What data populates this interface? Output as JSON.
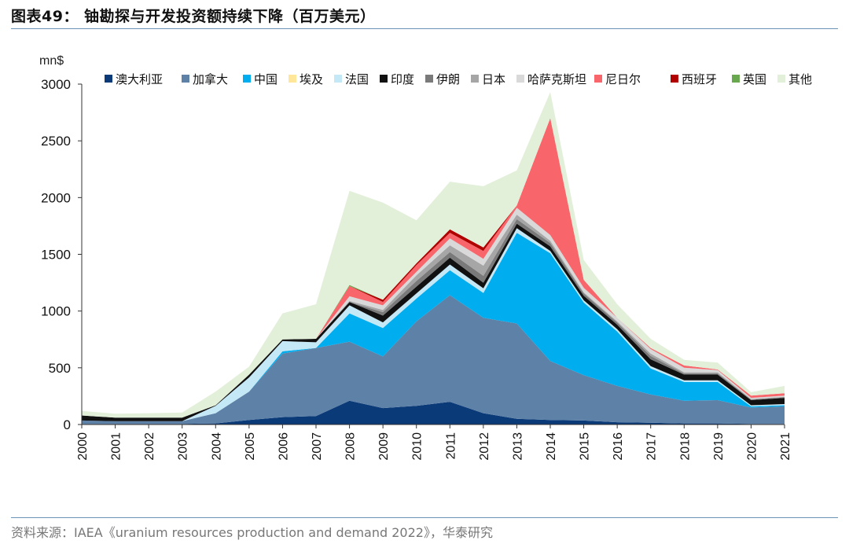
{
  "title": "图表49： 铀勘探与开发投资额持续下降（百万美元）",
  "source": "资料来源：IAEA《uranium resources production and demand 2022》，华泰研究",
  "chart_data": {
    "type": "area",
    "stacked": true,
    "unit_label": "mn$",
    "ylim": [
      0,
      3000
    ],
    "yticks": [
      0,
      500,
      1000,
      1500,
      2000,
      2500,
      3000
    ],
    "grid": false,
    "legend_position": "top",
    "x": [
      "2000",
      "2001",
      "2002",
      "2003",
      "2004",
      "2005",
      "2006",
      "2007",
      "2008",
      "2009",
      "2010",
      "2011",
      "2012",
      "2013",
      "2014",
      "2015",
      "2016",
      "2017",
      "2018",
      "2019",
      "2020",
      "2021"
    ],
    "series": [
      {
        "name": "澳大利亚",
        "color": "#0b3a78",
        "values": [
          5,
          5,
          5,
          5,
          10,
          40,
          65,
          75,
          210,
          145,
          165,
          200,
          100,
          50,
          40,
          35,
          20,
          15,
          10,
          10,
          5,
          5
        ]
      },
      {
        "name": "加拿大",
        "color": "#5e81a8",
        "values": [
          30,
          25,
          25,
          25,
          90,
          250,
          560,
          600,
          520,
          455,
          745,
          940,
          840,
          840,
          520,
          400,
          320,
          250,
          200,
          205,
          145,
          155
        ]
      },
      {
        "name": "中国",
        "color": "#00aeef",
        "values": [
          0,
          0,
          0,
          0,
          0,
          0,
          20,
          0,
          250,
          250,
          200,
          220,
          220,
          800,
          950,
          640,
          480,
          230,
          165,
          160,
          10,
          10
        ]
      },
      {
        "name": "埃及",
        "color": "#ffe699",
        "values": [
          0,
          0,
          0,
          0,
          0,
          0,
          0,
          0,
          0,
          0,
          0,
          0,
          0,
          0,
          0,
          0,
          0,
          0,
          0,
          0,
          0,
          0
        ]
      },
      {
        "name": "法国",
        "color": "#c5e8f7",
        "values": [
          0,
          0,
          0,
          0,
          65,
          125,
          90,
          50,
          70,
          50,
          45,
          50,
          40,
          40,
          20,
          20,
          20,
          20,
          15,
          15,
          10,
          10
        ]
      },
      {
        "name": "印度",
        "color": "#111111",
        "values": [
          45,
          30,
          30,
          30,
          5,
          25,
          15,
          30,
          30,
          60,
          60,
          60,
          50,
          40,
          40,
          40,
          40,
          60,
          50,
          50,
          45,
          55
        ]
      },
      {
        "name": "伊朗",
        "color": "#7a7a7a",
        "values": [
          0,
          0,
          0,
          0,
          0,
          0,
          0,
          0,
          0,
          30,
          50,
          50,
          60,
          40,
          30,
          20,
          20,
          30,
          10,
          10,
          5,
          5
        ]
      },
      {
        "name": "日本",
        "color": "#a6a6a6",
        "values": [
          0,
          0,
          0,
          0,
          0,
          0,
          0,
          0,
          10,
          20,
          50,
          60,
          90,
          40,
          20,
          10,
          10,
          20,
          10,
          10,
          5,
          5
        ]
      },
      {
        "name": "哈萨克斯坦",
        "color": "#d9d9d9",
        "values": [
          0,
          0,
          0,
          0,
          0,
          0,
          0,
          0,
          40,
          40,
          30,
          60,
          60,
          60,
          50,
          40,
          30,
          40,
          40,
          20,
          10,
          10
        ]
      },
      {
        "name": "尼日尔",
        "color": "#f8656a",
        "values": [
          0,
          0,
          0,
          0,
          0,
          0,
          0,
          0,
          90,
          30,
          60,
          50,
          70,
          20,
          1030,
          70,
          0,
          10,
          20,
          5,
          20,
          20
        ]
      },
      {
        "name": "西班牙",
        "color": "#b00000",
        "values": [
          0,
          0,
          0,
          0,
          0,
          0,
          0,
          0,
          0,
          20,
          15,
          30,
          30,
          0,
          0,
          0,
          0,
          0,
          0,
          0,
          0,
          0
        ]
      },
      {
        "name": "英国",
        "color": "#6aa84f",
        "values": [
          0,
          0,
          0,
          0,
          0,
          0,
          0,
          0,
          10,
          0,
          0,
          0,
          0,
          0,
          0,
          0,
          0,
          0,
          0,
          0,
          0,
          0
        ]
      },
      {
        "name": "其他",
        "color": "#e2efd9",
        "values": [
          40,
          35,
          40,
          45,
          120,
          70,
          230,
          305,
          830,
          855,
          380,
          420,
          540,
          310,
          230,
          175,
          120,
          80,
          50,
          60,
          30,
          65
        ]
      }
    ]
  }
}
